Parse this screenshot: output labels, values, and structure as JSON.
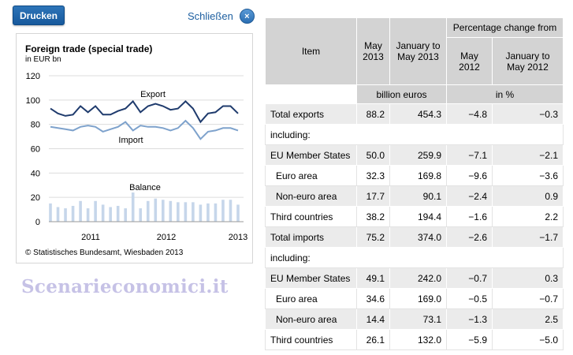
{
  "toolbar": {
    "print_label": "Drucken",
    "close_label": "Schließen",
    "close_glyph": "×"
  },
  "watermark": "Scenarieconomici.it",
  "chart_data": {
    "type": "line",
    "title": "Foreign trade (special trade)",
    "subtitle": "in EUR bn",
    "ylim": [
      0,
      120
    ],
    "y_ticks": [
      "120",
      "100",
      "80",
      "60",
      "40",
      "20",
      "0"
    ],
    "x_labels": [
      "2011",
      "2012",
      "2013"
    ],
    "series": [
      {
        "name": "Export",
        "color": "#1f3b6d",
        "values": [
          93,
          89,
          87,
          88,
          95,
          90,
          95,
          88,
          88,
          91,
          93,
          99,
          90,
          95,
          97,
          95,
          92,
          93,
          99,
          93,
          82,
          89,
          90,
          95,
          95,
          89
        ]
      },
      {
        "name": "Import",
        "color": "#7ea2cc",
        "values": [
          78,
          77,
          76,
          75,
          78,
          79,
          78,
          74,
          76,
          78,
          82,
          75,
          79,
          78,
          78,
          77,
          75,
          77,
          83,
          77,
          68,
          74,
          75,
          77,
          77,
          75
        ]
      },
      {
        "name": "Balance",
        "color": "#c6d6ea",
        "values": [
          15,
          12,
          11,
          13,
          17,
          11,
          17,
          14,
          12,
          13,
          11,
          24,
          11,
          17,
          19,
          18,
          17,
          16,
          16,
          16,
          14,
          15,
          15,
          18,
          18,
          14
        ]
      }
    ]
  },
  "chart": {
    "source": "© Statistisches Bundesamt, Wiesbaden 2013"
  },
  "table": {
    "header": {
      "item": "Item",
      "may2013": "May 2013",
      "jan_may2013": "January to May 2013",
      "pct_change": "Percentage change from",
      "may2012": "May 2012",
      "jan_may2012": "January to May 2012",
      "unit_billion": "billion euros",
      "unit_pct": "in %"
    },
    "rows": [
      {
        "label": "Total exports",
        "v1": "88.2",
        "v2": "454.3",
        "v3": "−4.8",
        "v4": "−0.3"
      },
      {
        "label": "including:"
      },
      {
        "label": "EU Member States",
        "v1": "50.0",
        "v2": "259.9",
        "v3": "−7.1",
        "v4": "−2.1"
      },
      {
        "label": "Euro area",
        "v1": "32.3",
        "v2": "169.8",
        "v3": "−9.6",
        "v4": "−3.6",
        "indent": true
      },
      {
        "label": "Non-euro area",
        "v1": "17.7",
        "v2": "90.1",
        "v3": "−2.4",
        "v4": "0.9",
        "indent": true
      },
      {
        "label": "Third countries",
        "v1": "38.2",
        "v2": "194.4",
        "v3": "−1.6",
        "v4": "2.2"
      },
      {
        "label": "Total imports",
        "v1": "75.2",
        "v2": "374.0",
        "v3": "−2.6",
        "v4": "−1.7"
      },
      {
        "label": "including:"
      },
      {
        "label": "EU Member States",
        "v1": "49.1",
        "v2": "242.0",
        "v3": "−0.7",
        "v4": "0.3"
      },
      {
        "label": "Euro area",
        "v1": "34.6",
        "v2": "169.0",
        "v3": "−0.5",
        "v4": "−0.7",
        "indent": true
      },
      {
        "label": "Non-euro area",
        "v1": "14.4",
        "v2": "73.1",
        "v3": "−1.3",
        "v4": "2.5",
        "indent": true
      },
      {
        "label": "Third countries",
        "v1": "26.1",
        "v2": "132.0",
        "v3": "−5.9",
        "v4": "−5.0"
      }
    ]
  }
}
